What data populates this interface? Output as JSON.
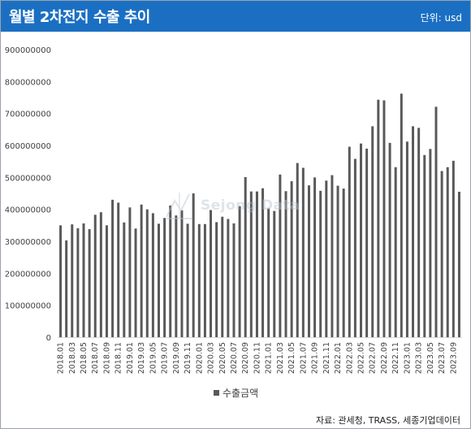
{
  "title": "월별 2차전지 수출 추이",
  "unit": "단위: usd",
  "source": "자료: 관세청, TRASS, 세종기업데이터",
  "watermark": "Sejong Data",
  "chart_data": {
    "type": "bar",
    "title": "월별 2차전지 수출 추이",
    "xlabel": "",
    "ylabel": "",
    "ylim": [
      0,
      900000000
    ],
    "yticks": [
      "0",
      "100000000",
      "200000000",
      "300000000",
      "400000000",
      "500000000",
      "600000000",
      "700000000",
      "800000000",
      "900000000"
    ],
    "grid": false,
    "legend_position": "bottom",
    "categories": [
      "2018.01",
      "2018.02",
      "2018.03",
      "2018.04",
      "2018.05",
      "2018.06",
      "2018.07",
      "2018.08",
      "2018.09",
      "2018.10",
      "2018.11",
      "2018.12",
      "2019.01",
      "2019.02",
      "2019.03",
      "2019.04",
      "2019.05",
      "2019.06",
      "2019.07",
      "2019.08",
      "2019.09",
      "2019.10",
      "2019.11",
      "2019.12",
      "2020.01",
      "2020.02",
      "2020.03",
      "2020.04",
      "2020.05",
      "2020.06",
      "2020.07",
      "2020.08",
      "2020.09",
      "2020.10",
      "2020.11",
      "2020.12",
      "2021.01",
      "2021.02",
      "2021.03",
      "2021.04",
      "2021.05",
      "2021.06",
      "2021.07",
      "2021.08",
      "2021.09",
      "2021.10",
      "2021.11",
      "2021.12",
      "2022.01",
      "2022.02",
      "2022.03",
      "2022.04",
      "2022.05",
      "2022.06",
      "2022.07",
      "2022.08",
      "2022.09",
      "2022.10",
      "2022.11",
      "2022.12",
      "2023.01",
      "2023.02",
      "2023.03",
      "2023.04",
      "2023.05",
      "2023.06",
      "2023.07",
      "2023.08",
      "2023.09",
      "2023.10"
    ],
    "series": [
      {
        "name": "수출금액",
        "color": "#595959",
        "values": [
          350000000,
          303000000,
          353000000,
          341000000,
          356000000,
          338000000,
          383000000,
          391000000,
          350000000,
          430000000,
          421000000,
          359000000,
          406000000,
          340000000,
          415000000,
          400000000,
          388000000,
          355000000,
          373000000,
          412000000,
          381000000,
          397000000,
          355000000,
          450000000,
          354000000,
          354000000,
          398000000,
          360000000,
          377000000,
          370000000,
          356000000,
          410000000,
          501000000,
          456000000,
          456000000,
          466000000,
          403000000,
          395000000,
          509000000,
          457000000,
          488000000,
          545000000,
          530000000,
          475000000,
          500000000,
          458000000,
          490000000,
          507000000,
          474000000,
          465000000,
          596000000,
          558000000,
          606000000,
          590000000,
          660000000,
          743000000,
          741000000,
          608000000,
          532000000,
          762000000,
          612000000,
          660000000,
          655000000,
          570000000,
          589000000,
          721000000,
          520000000,
          532000000,
          552000000,
          455000000
        ]
      }
    ]
  }
}
